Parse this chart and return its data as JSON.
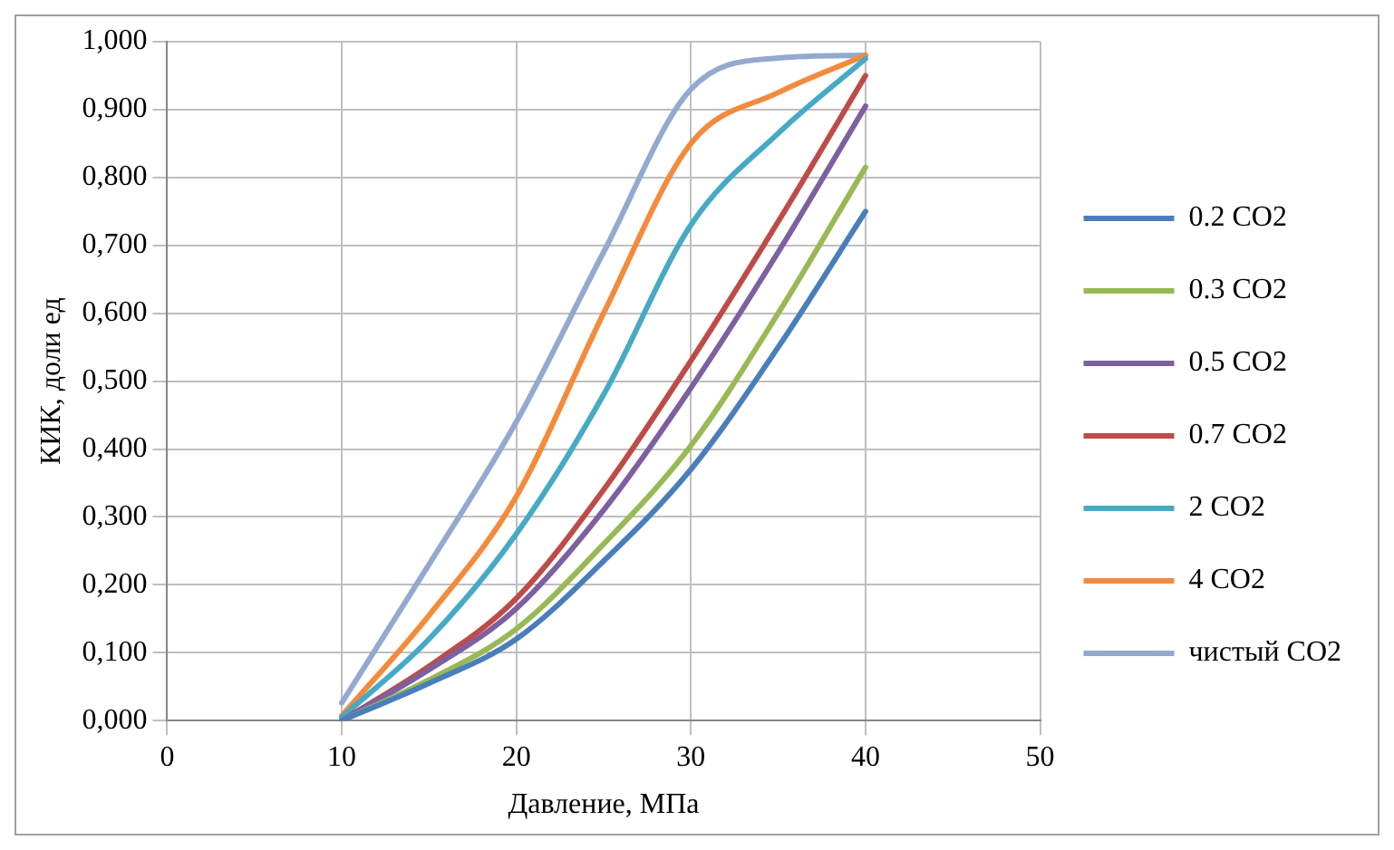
{
  "chart_data": {
    "type": "line",
    "xlabel": "Давление, МПа",
    "ylabel": "КИК, доли ед",
    "xlim": [
      0,
      50
    ],
    "xticks": [
      0,
      10,
      20,
      30,
      40,
      50
    ],
    "ylim": [
      0,
      1
    ],
    "yticks": [
      {
        "value": 0,
        "label": "0,000"
      },
      {
        "value": 0.1,
        "label": "0,100"
      },
      {
        "value": 0.2,
        "label": "0,200"
      },
      {
        "value": 0.3,
        "label": "0,300"
      },
      {
        "value": 0.4,
        "label": "0,400"
      },
      {
        "value": 0.5,
        "label": "0,500"
      },
      {
        "value": 0.6,
        "label": "0,600"
      },
      {
        "value": 0.7,
        "label": "0,700"
      },
      {
        "value": 0.8,
        "label": "0,800"
      },
      {
        "value": 0.9,
        "label": "0,900"
      },
      {
        "value": 1,
        "label": "1,000"
      }
    ],
    "grid": true,
    "legend": "right",
    "marker": "none",
    "line_style": "solid",
    "x": [
      10,
      15,
      20,
      25,
      30,
      35,
      40
    ],
    "series": [
      {
        "name": "0.2 CO2",
        "color": "#4a7ebb",
        "values": [
          0,
          0.055,
          0.12,
          0.235,
          0.37,
          0.55,
          0.75
        ]
      },
      {
        "name": "0.3 CO2",
        "color": "#98b954",
        "values": [
          0,
          0.06,
          0.135,
          0.26,
          0.405,
          0.6,
          0.815
        ]
      },
      {
        "name": "0.5 CO2",
        "color": "#7d60a0",
        "values": [
          0,
          0.075,
          0.165,
          0.31,
          0.49,
          0.69,
          0.905
        ]
      },
      {
        "name": "0.7 CO2",
        "color": "#be4b48",
        "values": [
          0,
          0.08,
          0.18,
          0.34,
          0.53,
          0.735,
          0.95
        ]
      },
      {
        "name": "2 CO2",
        "color": "#46aac5",
        "values": [
          0.005,
          0.12,
          0.275,
          0.48,
          0.73,
          0.865,
          0.975
        ]
      },
      {
        "name": "4 CO2",
        "color": "#f38b3c",
        "values": [
          0.007,
          0.155,
          0.33,
          0.6,
          0.85,
          0.925,
          0.98
        ]
      },
      {
        "name": "чистый CO2",
        "color": "#93a9cf",
        "values": [
          0.026,
          0.23,
          0.44,
          0.69,
          0.93,
          0.976,
          0.98
        ]
      }
    ]
  }
}
